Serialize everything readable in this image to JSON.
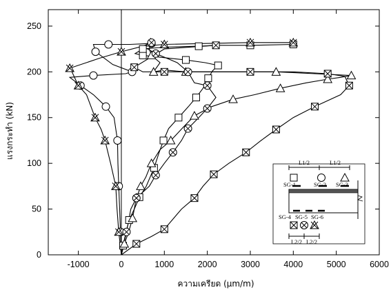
{
  "chart_data": {
    "type": "line",
    "title": "",
    "xlabel": "ความเครียด (μm/m)",
    "ylabel": "แรงกระทำ (kN)",
    "xlim": [
      -1700,
      6000
    ],
    "ylim": [
      0,
      268
    ],
    "xticks": [
      "-1000",
      "0",
      "1000",
      "2000",
      "3000",
      "4000",
      "5000",
      "6000"
    ],
    "yticks": [
      "0",
      "50",
      "100",
      "150",
      "200",
      "250"
    ],
    "xtick_values": [
      -1000,
      0,
      1000,
      2000,
      3000,
      4000,
      5000,
      6000
    ],
    "ytick_values": [
      0,
      50,
      100,
      150,
      200,
      250
    ],
    "grid": false,
    "series": [
      {
        "marker": "square",
        "points": [
          [
            0,
            0
          ],
          [
            40,
            10
          ],
          [
            110,
            25
          ],
          [
            180,
            38
          ],
          [
            300,
            50
          ],
          [
            420,
            63
          ],
          [
            580,
            75
          ],
          [
            760,
            95
          ],
          [
            880,
            112
          ],
          [
            980,
            125
          ],
          [
            1100,
            138
          ],
          [
            1330,
            150
          ],
          [
            1560,
            162
          ],
          [
            1740,
            172
          ],
          [
            1900,
            182
          ],
          [
            2020,
            193
          ],
          [
            2120,
            201
          ],
          [
            2250,
            207
          ],
          [
            1950,
            210
          ],
          [
            1500,
            213
          ],
          [
            900,
            216
          ],
          [
            500,
            218
          ],
          [
            320,
            220
          ],
          [
            500,
            225
          ],
          [
            1000,
            227
          ],
          [
            1800,
            228
          ],
          [
            2250,
            229
          ],
          [
            3000,
            229
          ],
          [
            4000,
            230
          ]
        ]
      },
      {
        "marker": "circle",
        "points": [
          [
            0,
            0
          ],
          [
            -20,
            25
          ],
          [
            -40,
            50
          ],
          [
            -60,
            75
          ],
          [
            -80,
            100
          ],
          [
            -90,
            125
          ],
          [
            -170,
            150
          ],
          [
            -360,
            162
          ],
          [
            -650,
            175
          ],
          [
            -950,
            185
          ],
          [
            -1200,
            194
          ],
          [
            -650,
            196
          ],
          [
            100,
            198
          ],
          [
            250,
            200
          ],
          [
            -200,
            208
          ],
          [
            -600,
            222
          ],
          [
            -650,
            230
          ],
          [
            -300,
            230
          ],
          [
            200,
            230
          ],
          [
            700,
            231
          ]
        ]
      },
      {
        "marker": "triangle",
        "points": [
          [
            0,
            0
          ],
          [
            70,
            12
          ],
          [
            170,
            25
          ],
          [
            260,
            40
          ],
          [
            340,
            60
          ],
          [
            450,
            75
          ],
          [
            570,
            85
          ],
          [
            700,
            100
          ],
          [
            900,
            115
          ],
          [
            1150,
            125
          ],
          [
            1450,
            140
          ],
          [
            1700,
            152
          ],
          [
            2100,
            162
          ],
          [
            2600,
            170
          ],
          [
            3100,
            175
          ],
          [
            3700,
            182
          ],
          [
            4300,
            188
          ],
          [
            4800,
            192
          ],
          [
            5100,
            194
          ],
          [
            5350,
            196
          ],
          [
            4500,
            198
          ],
          [
            3600,
            200
          ],
          [
            2500,
            200
          ],
          [
            1500,
            200
          ],
          [
            1000,
            202
          ],
          [
            750,
            200
          ],
          [
            900,
            210
          ],
          [
            700,
            218
          ],
          [
            650,
            225
          ],
          [
            680,
            232
          ]
        ]
      },
      {
        "marker": "xsquare",
        "points": [
          [
            0,
            0
          ],
          [
            350,
            12
          ],
          [
            700,
            20
          ],
          [
            1000,
            28
          ],
          [
            1400,
            50
          ],
          [
            1700,
            62
          ],
          [
            1900,
            75
          ],
          [
            2150,
            88
          ],
          [
            2500,
            100
          ],
          [
            2900,
            112
          ],
          [
            3250,
            125
          ],
          [
            3600,
            137
          ],
          [
            4000,
            150
          ],
          [
            4500,
            162
          ],
          [
            5100,
            175
          ],
          [
            5300,
            185
          ],
          [
            5200,
            195
          ],
          [
            4800,
            198
          ],
          [
            4000,
            200
          ],
          [
            3000,
            200
          ],
          [
            2000,
            200
          ],
          [
            1000,
            200
          ],
          [
            500,
            200
          ],
          [
            300,
            205
          ],
          [
            1000,
            225
          ],
          [
            2200,
            229
          ]
        ]
      },
      {
        "marker": "xcircle",
        "points": [
          [
            0,
            0
          ],
          [
            120,
            25
          ],
          [
            220,
            50
          ],
          [
            350,
            62
          ],
          [
            650,
            75
          ],
          [
            800,
            87
          ],
          [
            1000,
            100
          ],
          [
            1200,
            112
          ],
          [
            1400,
            125
          ],
          [
            1550,
            138
          ],
          [
            1800,
            150
          ],
          [
            2000,
            160
          ],
          [
            2200,
            172
          ],
          [
            2000,
            185
          ],
          [
            1700,
            188
          ],
          [
            1550,
            200
          ],
          [
            1300,
            210
          ],
          [
            800,
            220
          ],
          [
            500,
            228
          ],
          [
            700,
            232
          ]
        ]
      },
      {
        "marker": "xtriangle",
        "points": [
          [
            0,
            0
          ],
          [
            -60,
            25
          ],
          [
            -100,
            50
          ],
          [
            -130,
            75
          ],
          [
            -250,
            100
          ],
          [
            -380,
            125
          ],
          [
            -470,
            137
          ],
          [
            -610,
            150
          ],
          [
            -810,
            175
          ],
          [
            -1000,
            185
          ],
          [
            -1150,
            200
          ],
          [
            -1200,
            204
          ],
          [
            -500,
            215
          ],
          [
            0,
            222
          ],
          [
            500,
            228
          ],
          [
            1000,
            230
          ],
          [
            2000,
            231
          ],
          [
            3000,
            232
          ],
          [
            4000,
            232
          ]
        ]
      }
    ],
    "inset": {
      "span_labels": [
        "L1/2",
        "L1/2"
      ],
      "gauges_top": [
        "SG-1",
        "SG-2",
        "SG-3"
      ],
      "gauges_bottom": [
        "SG-4",
        "SG-5",
        "SG-6"
      ],
      "bottom_spans": [
        "L2/2",
        "L2/2"
      ]
    }
  }
}
